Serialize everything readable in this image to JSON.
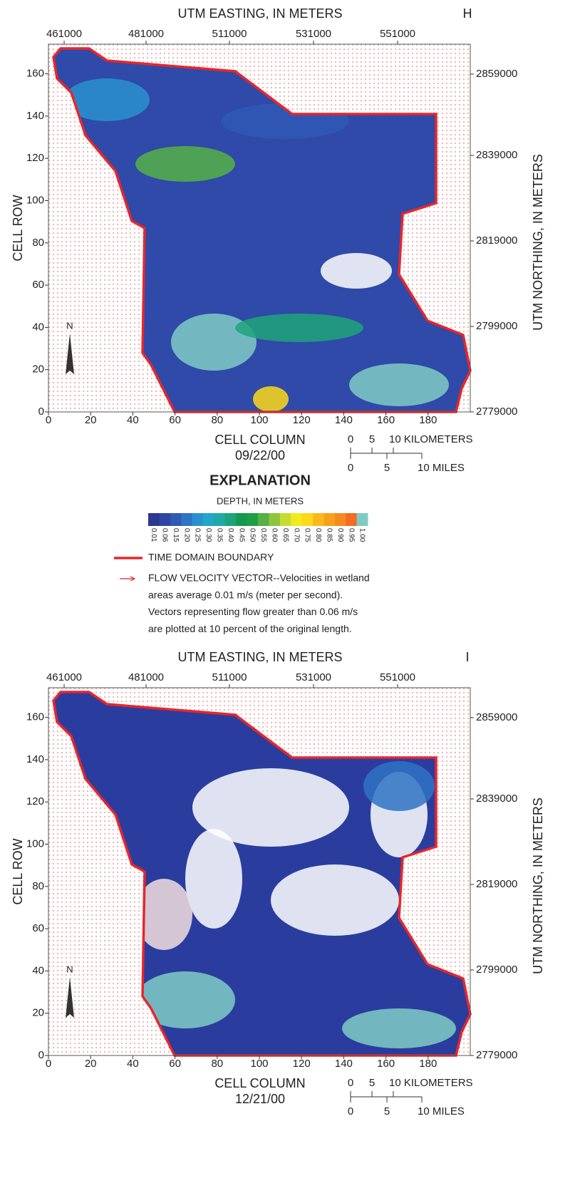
{
  "panels": [
    {
      "letter": "H",
      "top_axis_label": "UTM EASTING, IN METERS",
      "easting_ticks": [
        "461000",
        "481000",
        "511000",
        "531000",
        "551000"
      ],
      "left_axis_label": "CELL ROW",
      "row_ticks": [
        "0",
        "20",
        "40",
        "60",
        "80",
        "100",
        "120",
        "140",
        "160"
      ],
      "right_axis_label": "UTM NORTHING, IN METERS",
      "northing_ticks": [
        "2779000",
        "2799000",
        "2819000",
        "2839000",
        "2859000"
      ],
      "column_ticks": [
        "0",
        "20",
        "40",
        "60",
        "80",
        "100",
        "120",
        "140",
        "160",
        "180"
      ],
      "bottom_axis_label": "CELL COLUMN",
      "date": "09/22/00",
      "scale_km": [
        "0",
        "5",
        "10 KILOMETERS"
      ],
      "scale_mi": [
        "0",
        "5",
        "10 MILES"
      ]
    },
    {
      "letter": "I",
      "top_axis_label": "UTM EASTING, IN METERS",
      "easting_ticks": [
        "461000",
        "481000",
        "511000",
        "531000",
        "551000"
      ],
      "left_axis_label": "CELL ROW",
      "row_ticks": [
        "0",
        "20",
        "40",
        "60",
        "80",
        "100",
        "120",
        "140",
        "160"
      ],
      "right_axis_label": "UTM NORTHING, IN METERS",
      "northing_ticks": [
        "2779000",
        "2799000",
        "2819000",
        "2839000",
        "2859000"
      ],
      "column_ticks": [
        "0",
        "20",
        "40",
        "60",
        "80",
        "100",
        "120",
        "140",
        "160",
        "180"
      ],
      "bottom_axis_label": "CELL COLUMN",
      "date": "12/21/00",
      "scale_km": [
        "0",
        "5",
        "10 KILOMETERS"
      ],
      "scale_mi": [
        "0",
        "5",
        "10 MILES"
      ]
    }
  ],
  "explanation": {
    "title": "EXPLANATION",
    "subtitle": "DEPTH, IN METERS",
    "color_scale": [
      {
        "label": "0.01",
        "color": "#2b3790"
      },
      {
        "label": "0.06",
        "color": "#2e45a3"
      },
      {
        "label": "0.15",
        "color": "#3058b5"
      },
      {
        "label": "0.20",
        "color": "#2f73c4"
      },
      {
        "label": "0.25",
        "color": "#2a91cf"
      },
      {
        "label": "0.30",
        "color": "#23a6c9"
      },
      {
        "label": "0.35",
        "color": "#1fa8a6"
      },
      {
        "label": "0.40",
        "color": "#1ea37a"
      },
      {
        "label": "0.45",
        "color": "#139a4b"
      },
      {
        "label": "0.50",
        "color": "#1f9f45"
      },
      {
        "label": "0.55",
        "color": "#55b047"
      },
      {
        "label": "0.60",
        "color": "#8cc63f"
      },
      {
        "label": "0.65",
        "color": "#c5dc32"
      },
      {
        "label": "0.70",
        "color": "#f2ea1f"
      },
      {
        "label": "0.75",
        "color": "#fbd91a"
      },
      {
        "label": "0.80",
        "color": "#f9b91a"
      },
      {
        "label": "0.85",
        "color": "#f7a11b"
      },
      {
        "label": "0.90",
        "color": "#f58a1f"
      },
      {
        "label": "0.95",
        "color": "#f26c22"
      },
      {
        "label": "1.00",
        "color": "#7fcbc4"
      }
    ],
    "boundary_label": "TIME DOMAIN BOUNDARY",
    "vector_lines": [
      "FLOW VELOCITY VECTOR--Velocities in wetland",
      "areas average 0.01 m/s (meter per second).",
      "Vectors representing flow greater than 0.06 m/s",
      "are plotted at 10 percent of the original length."
    ]
  }
}
